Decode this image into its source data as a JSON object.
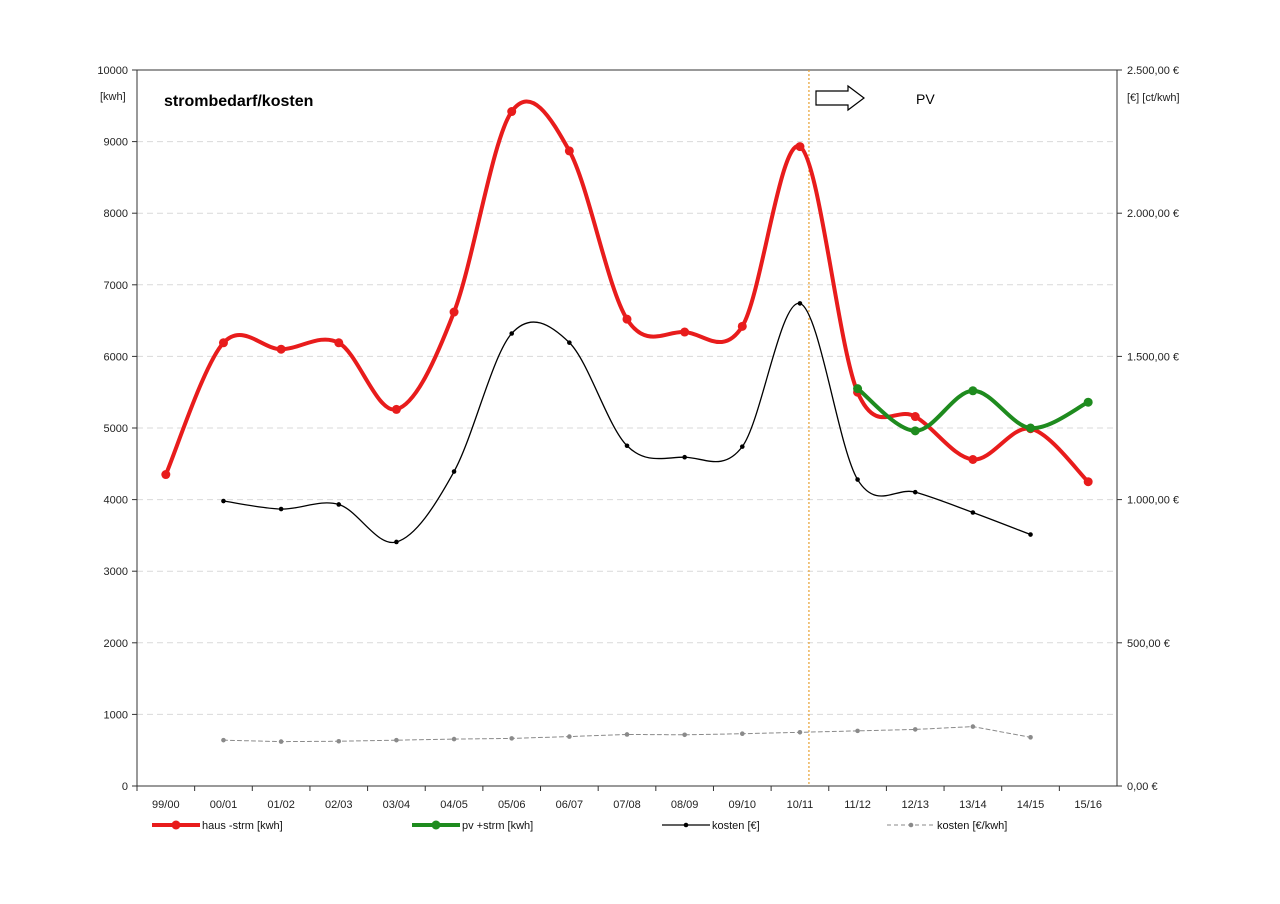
{
  "chart_data": {
    "type": "line",
    "title": "strombedarf/kosten",
    "categories": [
      "99/00",
      "00/01",
      "01/02",
      "02/03",
      "03/04",
      "04/05",
      "05/06",
      "06/07",
      "07/08",
      "08/09",
      "09/10",
      "10/11",
      "11/12",
      "12/13",
      "13/14",
      "14/15",
      "15/16"
    ],
    "y_left": {
      "unit_label": "[kwh]",
      "ylim": [
        0,
        10000
      ],
      "ticks": [
        "0",
        "1000",
        "2000",
        "3000",
        "4000",
        "5000",
        "6000",
        "7000",
        "8000",
        "9000",
        "10000"
      ]
    },
    "y_right": {
      "unit_label": "[€] [ct/kwh]",
      "ylim": [
        0,
        2500
      ],
      "ticks": [
        "0,00 €",
        "500,00 €",
        "1.000,00 €",
        "1.500,00 €",
        "2.000,00 €",
        "2.500,00 €"
      ]
    },
    "grid": "horizontal dashed",
    "legend_position": "bottom",
    "annotation": {
      "text": "PV",
      "marker_category": "10/11",
      "marker_color": "#E8A030"
    },
    "series": [
      {
        "name": "haus -strm [kwh]",
        "axis": "left",
        "color": "#E81C1C",
        "style": "thick-smooth",
        "values": [
          4350,
          6190,
          6100,
          6190,
          5260,
          6620,
          9420,
          8870,
          6520,
          6340,
          6420,
          8930,
          5500,
          5160,
          4560,
          4990,
          4250
        ]
      },
      {
        "name": "pv +strm [kwh]",
        "axis": "left",
        "color": "#1E8B1E",
        "style": "thick-smooth",
        "values": [
          null,
          null,
          null,
          null,
          null,
          null,
          null,
          null,
          null,
          null,
          null,
          null,
          5550,
          4960,
          5520,
          5000,
          5360
        ]
      },
      {
        "name": "kosten [€]",
        "axis": "right",
        "color": "#000000",
        "style": "thin-smooth",
        "values": [
          null,
          995,
          967,
          983,
          852,
          1098,
          1580,
          1548,
          1188,
          1148,
          1185,
          1685,
          1070,
          1026,
          955,
          878,
          null
        ]
      },
      {
        "name": "kosten [€/kwh]",
        "axis": "left",
        "color": "#8A8A8A",
        "style": "dashed",
        "values": [
          null,
          640,
          620,
          625,
          640,
          655,
          665,
          690,
          720,
          715,
          730,
          750,
          770,
          790,
          830,
          680,
          null
        ]
      }
    ]
  }
}
